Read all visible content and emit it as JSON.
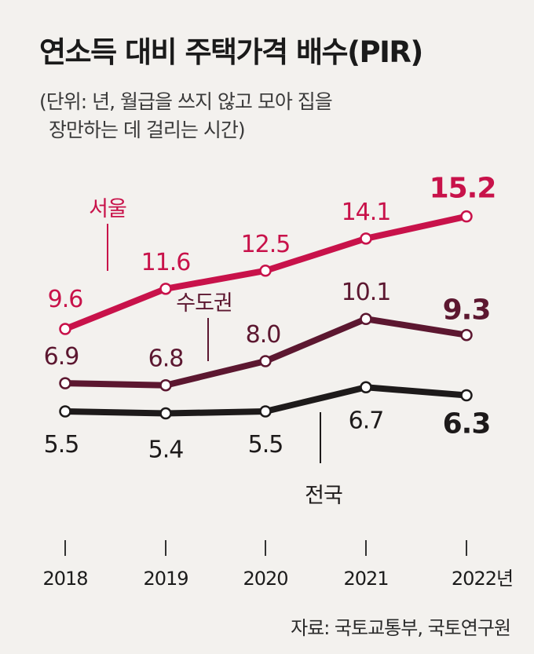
{
  "title": "연소득 대비 주택가격 배수(PIR)",
  "subtitle_line1": "(단위: 년, 월급을 쓰지 않고 모아 집을",
  "subtitle_line2": "장만하는 데  걸리는 시간)",
  "source": "자료: 국토교통부, 국토연구원",
  "colors": {
    "seoul": "#c8124a",
    "metro": "#5c1730",
    "national": "#1d1a1a",
    "background": "#f3f1ee"
  },
  "chart_data": {
    "type": "line",
    "categories": [
      "2018",
      "2019",
      "2020",
      "2021",
      "2022년"
    ],
    "xlabel": "",
    "ylabel": "",
    "grid": false,
    "series": [
      {
        "name": "서울",
        "values": [
          9.6,
          11.6,
          12.5,
          14.1,
          15.2
        ],
        "labels": [
          "9.6",
          "11.6",
          "12.5",
          "14.1",
          "15.2"
        ]
      },
      {
        "name": "수도권",
        "values": [
          6.9,
          6.8,
          8.0,
          10.1,
          9.3
        ],
        "labels": [
          "6.9",
          "6.8",
          "8.0",
          "10.1",
          "9.3"
        ]
      },
      {
        "name": "전국",
        "values": [
          5.5,
          5.4,
          5.5,
          6.7,
          6.3
        ],
        "labels": [
          "5.5",
          "5.4",
          "5.5",
          "6.7",
          "6.3"
        ]
      }
    ]
  }
}
